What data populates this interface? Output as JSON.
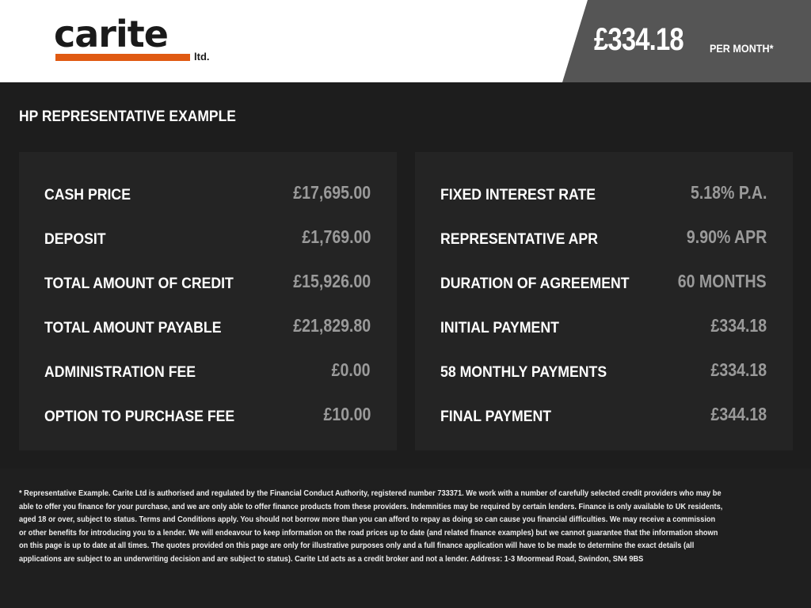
{
  "header": {
    "logo_text": "carite",
    "logo_suffix": "ltd.",
    "monthly_price": "£334.18",
    "per_month": "PER MONTH*",
    "brand_color": "#e05a12"
  },
  "title": "HP REPRESENTATIVE EXAMPLE",
  "left": [
    {
      "label": "CASH PRICE",
      "value": "£17,695.00"
    },
    {
      "label": "DEPOSIT",
      "value": "£1,769.00"
    },
    {
      "label": "TOTAL AMOUNT OF CREDIT",
      "value": "£15,926.00"
    },
    {
      "label": "TOTAL AMOUNT PAYABLE",
      "value": "£21,829.80"
    },
    {
      "label": "ADMINISTRATION FEE",
      "value": "£0.00"
    },
    {
      "label": "OPTION TO PURCHASE FEE",
      "value": "£10.00"
    }
  ],
  "right": [
    {
      "label": "FIXED INTEREST RATE",
      "value": "5.18% P.A."
    },
    {
      "label": "REPRESENTATIVE APR",
      "value": "9.90% APR"
    },
    {
      "label": "DURATION OF AGREEMENT",
      "value": "60 MONTHS"
    },
    {
      "label": "INITIAL PAYMENT",
      "value": "£334.18"
    },
    {
      "label": "58 MONTHLY PAYMENTS",
      "value": "£334.18"
    },
    {
      "label": "FINAL PAYMENT",
      "value": "£344.18"
    }
  ],
  "disclaimer": "* Representative Example. Carite Ltd is authorised and regulated by the Financial Conduct Authority, registered number 733371. We work with a number of carefully selected credit providers who may be able to offer you finance for your purchase, and we are only able to offer finance products from these providers. Indemnities may be required by certain lenders. Finance is only available to UK residents, aged 18 or over, subject to status. Terms and Conditions apply. You should not borrow more than you can afford to repay as doing so can cause you financial difficulties. We may receive a commission or other benefits for introducing you to a lender. We will endeavour to keep information on the road prices up to date (and related finance examples) but we cannot guarantee that the information shown on this page is up to date at all times. The quotes provided on this page are only for illustrative purposes only and a full finance application will have to be made to determine the exact details (all applications are subject to an underwriting decision and are subject to status). Carite Ltd acts as a credit broker and not a lender. Address: 1-3 Moormead Road, Swindon, SN4 9BS"
}
